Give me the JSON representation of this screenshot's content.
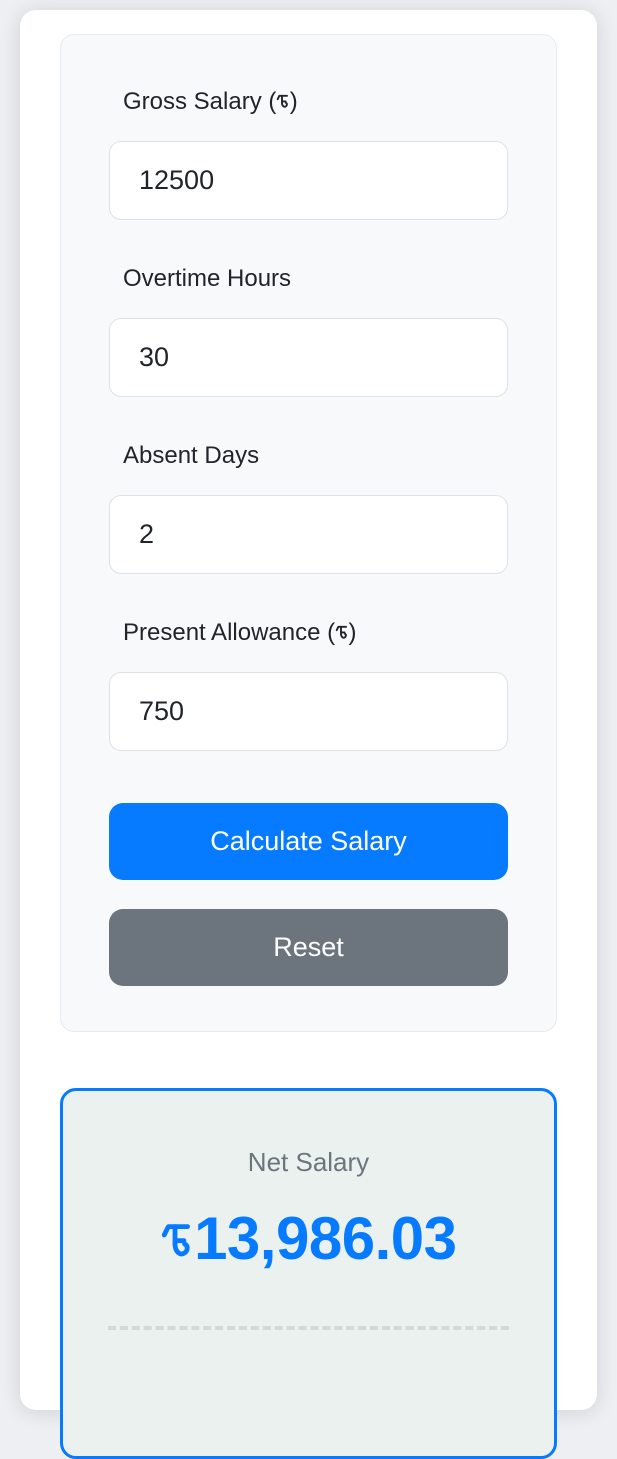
{
  "form": {
    "fields": [
      {
        "label": "Gross Salary (৳)",
        "value": "12500"
      },
      {
        "label": "Overtime Hours",
        "value": "30"
      },
      {
        "label": "Absent Days",
        "value": "2"
      },
      {
        "label": "Present Allowance (৳)",
        "value": "750"
      }
    ],
    "calculate_label": "Calculate Salary",
    "reset_label": "Reset"
  },
  "result": {
    "title": "Net Salary",
    "amount": "৳13,986.03"
  },
  "colors": {
    "primary": "#077bff",
    "secondary": "#6c757d",
    "result_background": "#eaf1ee",
    "amount_text": "#077bff"
  }
}
